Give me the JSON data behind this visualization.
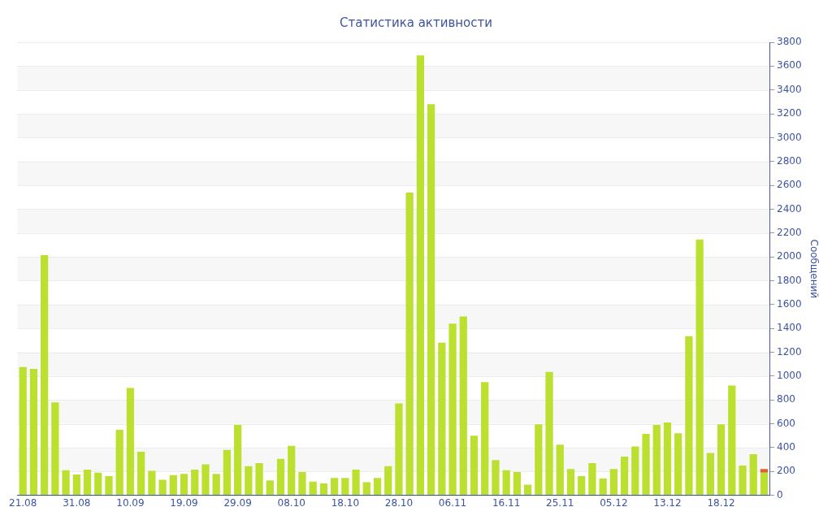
{
  "chart_data": {
    "type": "bar",
    "title": "Статистика активности",
    "ylabel": "Сообщений",
    "stacked": true,
    "grid": "y",
    "categories": [
      "21.08",
      null,
      null,
      null,
      null,
      "31.08",
      null,
      null,
      null,
      null,
      "10.09",
      null,
      null,
      null,
      null,
      "19.09",
      null,
      null,
      null,
      null,
      "29.09",
      null,
      null,
      null,
      null,
      "08.10",
      null,
      null,
      null,
      null,
      "18.10",
      null,
      null,
      null,
      null,
      "28.10",
      null,
      null,
      null,
      null,
      "06.11",
      null,
      null,
      null,
      null,
      "16.11",
      null,
      null,
      null,
      null,
      "25.11",
      null,
      null,
      null,
      null,
      "05.12",
      null,
      null,
      null,
      null,
      "13.12",
      null,
      null,
      null,
      null,
      "18.12",
      null,
      null,
      null,
      null
    ],
    "series": [
      {
        "color": "#bbe030",
        "values": [
          1075,
          1060,
          2015,
          780,
          210,
          175,
          215,
          190,
          160,
          550,
          900,
          365,
          205,
          130,
          170,
          180,
          215,
          260,
          180,
          380,
          590,
          245,
          270,
          125,
          305,
          415,
          195,
          115,
          100,
          145,
          145,
          215,
          110,
          145,
          245,
          770,
          2540,
          3690,
          3280,
          1280,
          1440,
          1500,
          500,
          950,
          295,
          210,
          195,
          90,
          595,
          1035,
          425,
          220,
          160,
          270,
          140,
          220,
          325,
          410,
          515,
          590,
          610,
          520,
          1335,
          2145,
          355,
          595,
          920,
          250,
          345,
          190
        ]
      },
      {
        "color": "#e06030",
        "values": [
          null,
          null,
          null,
          null,
          null,
          null,
          null,
          null,
          null,
          null,
          null,
          null,
          null,
          null,
          null,
          null,
          null,
          null,
          null,
          null,
          null,
          null,
          null,
          null,
          null,
          null,
          null,
          null,
          null,
          null,
          null,
          null,
          null,
          null,
          null,
          null,
          null,
          null,
          null,
          null,
          null,
          null,
          null,
          null,
          null,
          null,
          null,
          null,
          null,
          null,
          null,
          null,
          null,
          null,
          null,
          null,
          null,
          null,
          null,
          null,
          null,
          null,
          null,
          null,
          null,
          null,
          null,
          null,
          null,
          30
        ]
      }
    ],
    "ylim": [
      0,
      3800
    ],
    "yticks": [
      0,
      200,
      400,
      600,
      800,
      1000,
      1200,
      1400,
      1600,
      1800,
      2000,
      2200,
      2400,
      2600,
      2800,
      3000,
      3200,
      3400,
      3600,
      3800
    ],
    "legend": false
  }
}
